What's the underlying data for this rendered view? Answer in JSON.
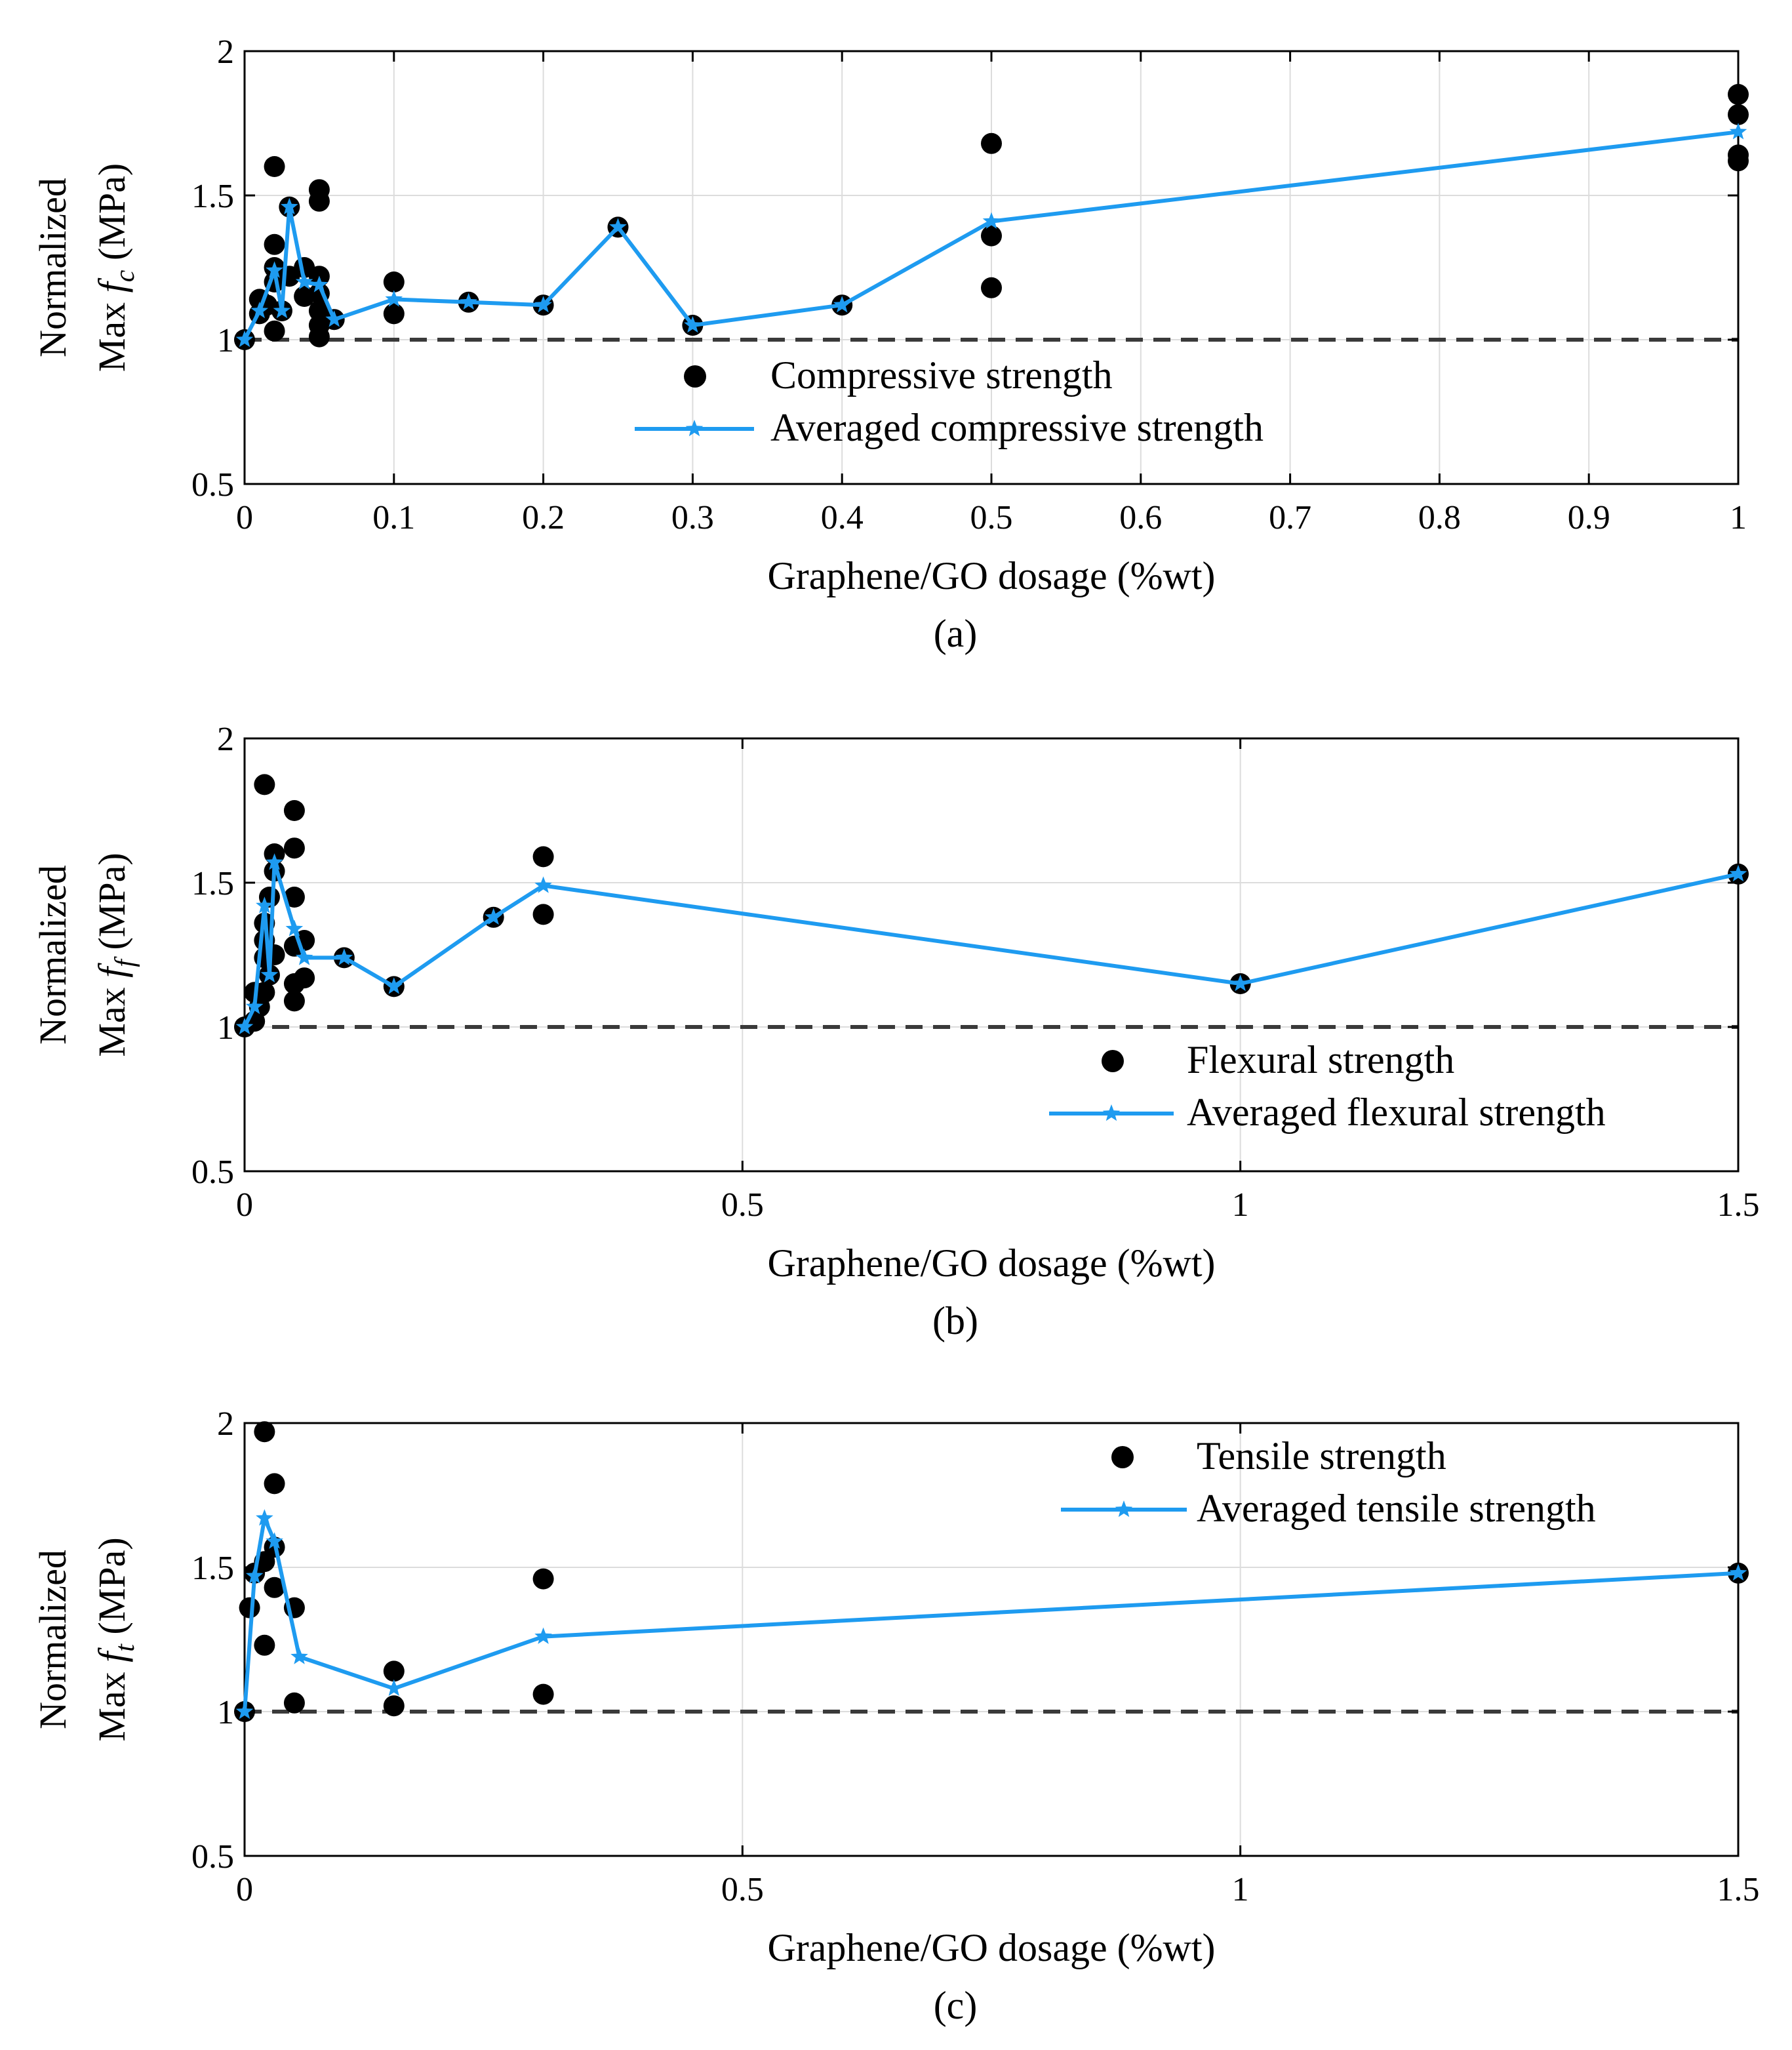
{
  "chart_data": [
    {
      "type": "scatter",
      "panel": "(a)",
      "caption": "(a)",
      "xlabel": "Graphene/GO dosage (%wt)",
      "ylabel_top": "Normalized",
      "ylabel_main": "Max",
      "ylabel_f": "f",
      "ylabel_sub": "c",
      "ylabel_unit": "(MPa)",
      "xlim": [
        0,
        1
      ],
      "ylim": [
        0.5,
        2
      ],
      "xticks": [
        0,
        0.1,
        0.2,
        0.3,
        0.4,
        0.5,
        0.6,
        0.7,
        0.8,
        0.9,
        1
      ],
      "xtick_labels": [
        "0",
        "0.1",
        "0.2",
        "0.3",
        "0.4",
        "0.5",
        "0.6",
        "0.7",
        "0.8",
        "0.9",
        "1"
      ],
      "yticks": [
        0.5,
        1,
        1.5,
        2
      ],
      "ytick_labels": [
        "0.5",
        "1",
        "1.5",
        "2"
      ],
      "grid": true,
      "legend_position": "center-bottom",
      "legend": {
        "points": "Compressive strength",
        "line": "Averaged compressive strength"
      },
      "reference_y": 1,
      "points": [
        [
          0,
          1.0
        ],
        [
          0.01,
          1.14
        ],
        [
          0.01,
          1.09
        ],
        [
          0.015,
          1.12
        ],
        [
          0.02,
          1.6
        ],
        [
          0.02,
          1.33
        ],
        [
          0.02,
          1.25
        ],
        [
          0.02,
          1.2
        ],
        [
          0.02,
          1.03
        ],
        [
          0.025,
          1.1
        ],
        [
          0.03,
          1.46
        ],
        [
          0.03,
          1.22
        ],
        [
          0.04,
          1.25
        ],
        [
          0.04,
          1.15
        ],
        [
          0.05,
          1.52
        ],
        [
          0.05,
          1.48
        ],
        [
          0.05,
          1.22
        ],
        [
          0.05,
          1.16
        ],
        [
          0.05,
          1.1
        ],
        [
          0.05,
          1.05
        ],
        [
          0.05,
          1.01
        ],
        [
          0.06,
          1.07
        ],
        [
          0.1,
          1.2
        ],
        [
          0.1,
          1.09
        ],
        [
          0.15,
          1.13
        ],
        [
          0.2,
          1.12
        ],
        [
          0.25,
          1.39
        ],
        [
          0.3,
          1.05
        ],
        [
          0.4,
          1.12
        ],
        [
          0.5,
          1.68
        ],
        [
          0.5,
          1.36
        ],
        [
          0.5,
          1.18
        ],
        [
          1.0,
          1.85
        ],
        [
          1.0,
          1.78
        ],
        [
          1.0,
          1.64
        ],
        [
          1.0,
          1.62
        ]
      ],
      "averaged": [
        [
          0,
          1.0
        ],
        [
          0.01,
          1.1
        ],
        [
          0.02,
          1.24
        ],
        [
          0.025,
          1.1
        ],
        [
          0.03,
          1.46
        ],
        [
          0.04,
          1.2
        ],
        [
          0.05,
          1.19
        ],
        [
          0.06,
          1.07
        ],
        [
          0.1,
          1.14
        ],
        [
          0.15,
          1.13
        ],
        [
          0.2,
          1.12
        ],
        [
          0.25,
          1.39
        ],
        [
          0.3,
          1.05
        ],
        [
          0.4,
          1.12
        ],
        [
          0.5,
          1.41
        ],
        [
          1.0,
          1.72
        ]
      ]
    },
    {
      "type": "scatter",
      "panel": "(b)",
      "caption": "(b)",
      "xlabel": "Graphene/GO dosage (%wt)",
      "ylabel_top": "Normalized",
      "ylabel_main": "Max",
      "ylabel_f": "f",
      "ylabel_sub": "f",
      "ylabel_unit": "(MPa)",
      "xlim": [
        0,
        1.5
      ],
      "ylim": [
        0.5,
        2
      ],
      "xticks": [
        0,
        0.5,
        1,
        1.5
      ],
      "xtick_labels": [
        "0",
        "0.5",
        "1",
        "1.5"
      ],
      "yticks": [
        0.5,
        1,
        1.5,
        2
      ],
      "ytick_labels": [
        "0.5",
        "1",
        "1.5",
        "2"
      ],
      "grid": true,
      "legend_position": "bottom-right",
      "legend": {
        "points": "Flexural strength",
        "line": "Averaged flexural strength"
      },
      "reference_y": 1,
      "points": [
        [
          0,
          1.0
        ],
        [
          0.01,
          1.12
        ],
        [
          0.01,
          1.02
        ],
        [
          0.015,
          1.07
        ],
        [
          0.02,
          1.84
        ],
        [
          0.02,
          1.36
        ],
        [
          0.02,
          1.3
        ],
        [
          0.02,
          1.24
        ],
        [
          0.02,
          1.12
        ],
        [
          0.025,
          1.45
        ],
        [
          0.025,
          1.18
        ],
        [
          0.03,
          1.6
        ],
        [
          0.03,
          1.54
        ],
        [
          0.03,
          1.25
        ],
        [
          0.05,
          1.75
        ],
        [
          0.05,
          1.62
        ],
        [
          0.05,
          1.45
        ],
        [
          0.05,
          1.28
        ],
        [
          0.05,
          1.15
        ],
        [
          0.05,
          1.09
        ],
        [
          0.06,
          1.3
        ],
        [
          0.06,
          1.17
        ],
        [
          0.1,
          1.24
        ],
        [
          0.15,
          1.14
        ],
        [
          0.25,
          1.38
        ],
        [
          0.3,
          1.59
        ],
        [
          0.3,
          1.39
        ],
        [
          1.0,
          1.15
        ],
        [
          1.5,
          1.53
        ]
      ],
      "averaged": [
        [
          0,
          1.0
        ],
        [
          0.01,
          1.07
        ],
        [
          0.02,
          1.42
        ],
        [
          0.025,
          1.18
        ],
        [
          0.03,
          1.57
        ],
        [
          0.05,
          1.34
        ],
        [
          0.06,
          1.24
        ],
        [
          0.1,
          1.24
        ],
        [
          0.15,
          1.14
        ],
        [
          0.25,
          1.38
        ],
        [
          0.3,
          1.49
        ],
        [
          1.0,
          1.15
        ],
        [
          1.5,
          1.53
        ]
      ]
    },
    {
      "type": "scatter",
      "panel": "(c)",
      "caption": "(c)",
      "xlabel": "Graphene/GO dosage (%wt)",
      "ylabel_top": "Normalized",
      "ylabel_main": "Max",
      "ylabel_f": "f",
      "ylabel_sub": "t",
      "ylabel_unit": "(MPa)",
      "xlim": [
        0,
        1.5
      ],
      "ylim": [
        0.5,
        2
      ],
      "xticks": [
        0,
        0.5,
        1,
        1.5
      ],
      "xtick_labels": [
        "0",
        "0.5",
        "1",
        "1.5"
      ],
      "yticks": [
        0.5,
        1,
        1.5,
        2
      ],
      "ytick_labels": [
        "0.5",
        "1",
        "1.5",
        "2"
      ],
      "grid": true,
      "legend_position": "top-right",
      "legend": {
        "points": "Tensile strength",
        "line": "Averaged tensile strength"
      },
      "reference_y": 1,
      "points": [
        [
          0,
          1.0
        ],
        [
          0.005,
          1.36
        ],
        [
          0.01,
          1.48
        ],
        [
          0.02,
          1.97
        ],
        [
          0.02,
          1.52
        ],
        [
          0.02,
          1.23
        ],
        [
          0.03,
          1.79
        ],
        [
          0.03,
          1.57
        ],
        [
          0.03,
          1.43
        ],
        [
          0.05,
          1.36
        ],
        [
          0.05,
          1.03
        ],
        [
          0.15,
          1.14
        ],
        [
          0.15,
          1.02
        ],
        [
          0.3,
          1.46
        ],
        [
          0.3,
          1.06
        ],
        [
          1.5,
          1.48
        ]
      ],
      "averaged": [
        [
          0,
          1.0
        ],
        [
          0.01,
          1.47
        ],
        [
          0.02,
          1.67
        ],
        [
          0.03,
          1.59
        ],
        [
          0.055,
          1.19
        ],
        [
          0.15,
          1.08
        ],
        [
          0.3,
          1.26
        ],
        [
          1.5,
          1.48
        ]
      ]
    }
  ],
  "colors": {
    "line": "#1e9bf0",
    "points": "#000000",
    "grid": "#dcdcdc",
    "reference": "#3a3a3a"
  }
}
